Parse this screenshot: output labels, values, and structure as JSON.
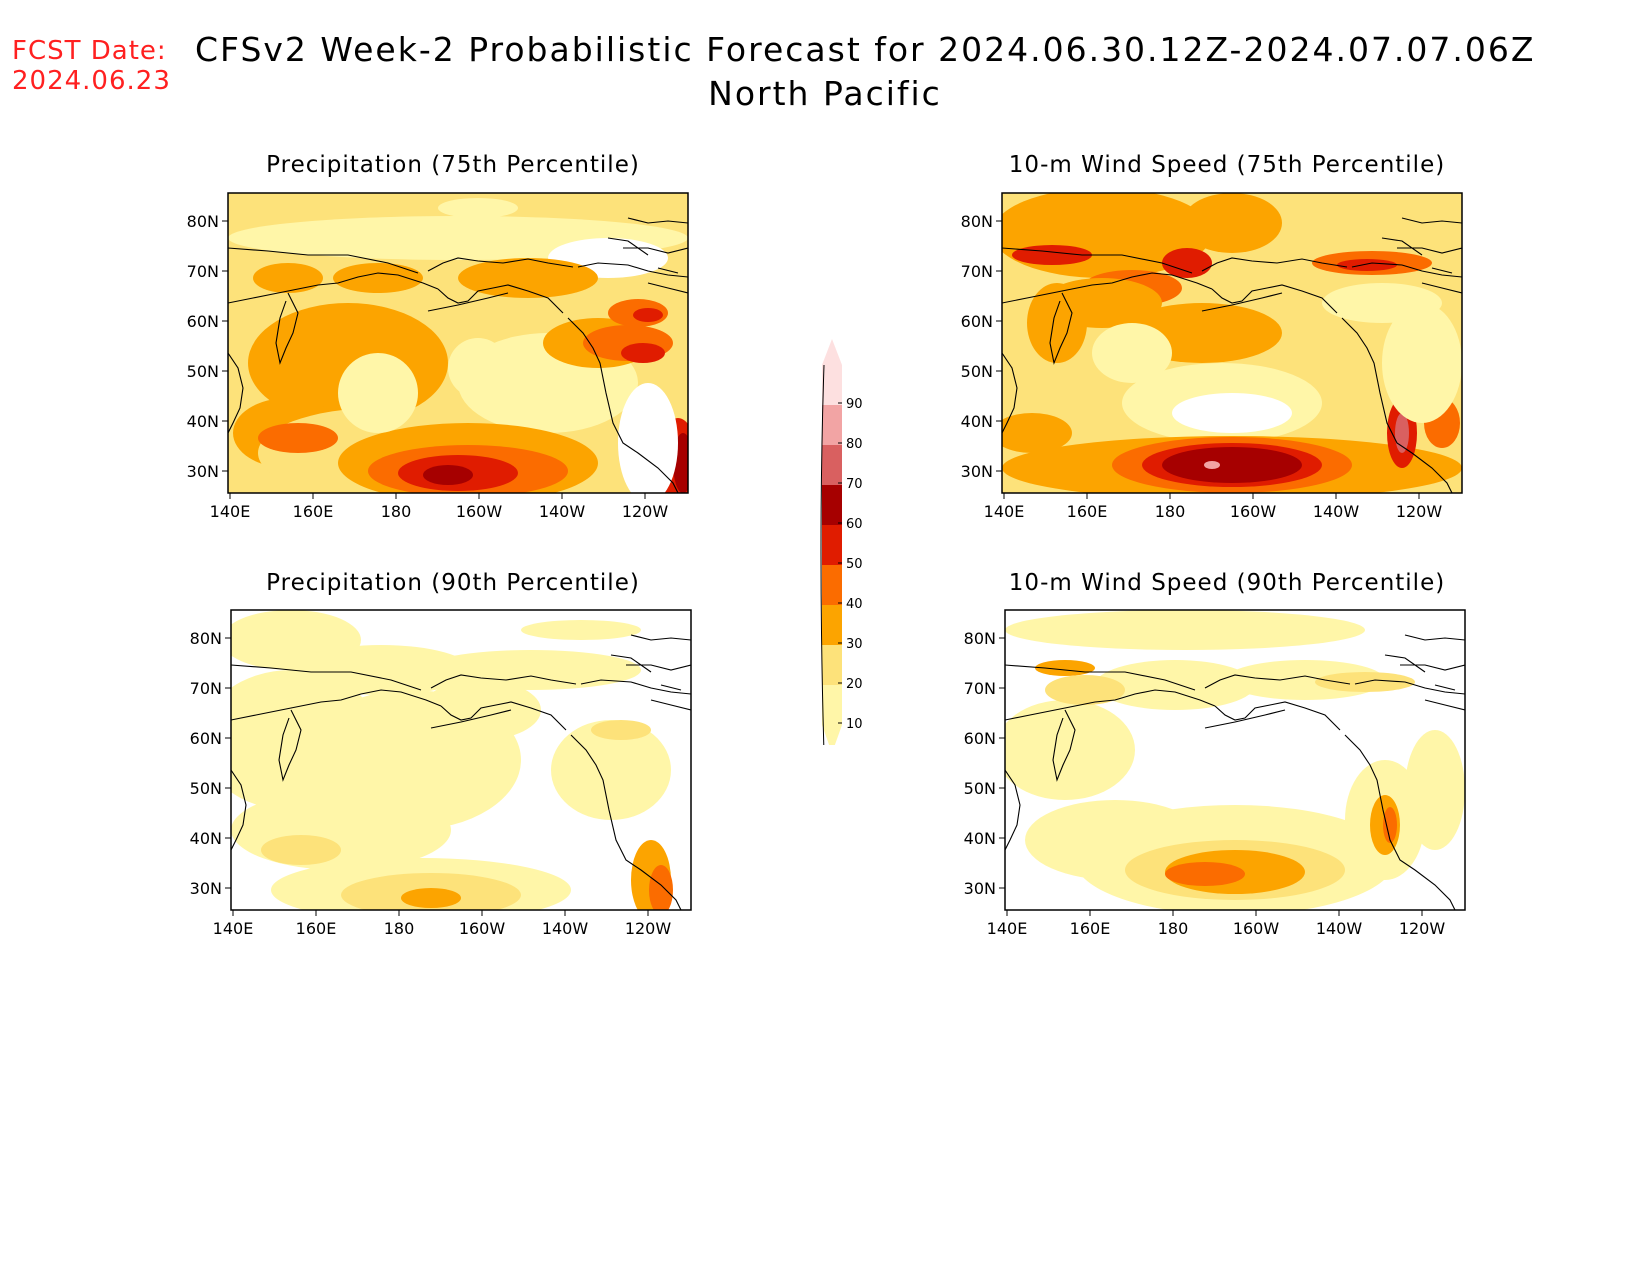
{
  "header": {
    "fcst_label": "FCST Date:",
    "fcst_date": "2024.06.23",
    "title": "CFSv2 Week-2 Probabilistic Forecast for 2024.06.30.12Z-2024.07.07.06Z",
    "region": "North Pacific"
  },
  "axes": {
    "lon_ticks": [
      "140E",
      "160E",
      "180",
      "160W",
      "140W",
      "120W"
    ],
    "lat_ticks": [
      "80N",
      "70N",
      "60N",
      "50N",
      "40N",
      "30N"
    ]
  },
  "panels": [
    {
      "id": "precip75",
      "title": "Precipitation (75th Percentile)"
    },
    {
      "id": "wind75",
      "title": "10-m Wind Speed (75th Percentile)"
    },
    {
      "id": "precip90",
      "title": "Precipitation (90th Percentile)"
    },
    {
      "id": "wind90",
      "title": "10-m Wind Speed (90th Percentile)"
    }
  ],
  "colorbar": {
    "levels": [
      "10",
      "20",
      "30",
      "40",
      "50",
      "60",
      "70",
      "80",
      "90"
    ],
    "colors": [
      "#fff6a8",
      "#fde27a",
      "#fca400",
      "#fb6c00",
      "#e01c00",
      "#a60000",
      "#d96060",
      "#f2a4a4",
      "#fde0e0"
    ]
  }
}
